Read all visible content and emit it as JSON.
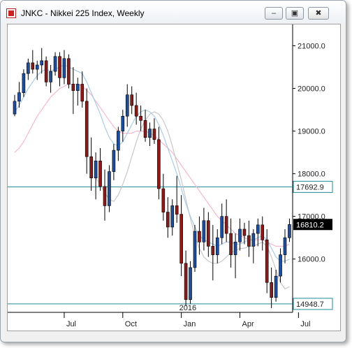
{
  "window": {
    "title": "JNKC - Nikkei 225 Index, Weekly",
    "buttons": [
      "–",
      "▣",
      "✖"
    ]
  },
  "colors": {
    "up_candle": "#1f4e9c",
    "down_candle": "#8b1a1a",
    "wick": "#000000",
    "ma_fast": "#a9cbe6",
    "ma_slow": "#f5b8d0",
    "ma_mid": "#c8c8c8",
    "hline": "#1e8c9c",
    "price_tag_bg": "#000000",
    "price_tag_fg": "#ffffff"
  },
  "chart_data": {
    "type": "candlestick",
    "title": "JNKC - Nikkei 225 Index, Weekly",
    "ylim": [
      14750,
      21500
    ],
    "y_ticks": [
      "21000.0",
      "20000.0",
      "19000.0",
      "18000.0",
      "17000.0",
      "16000.0"
    ],
    "y_tick_values": [
      21000,
      20000,
      19000,
      18000,
      17000,
      16000
    ],
    "x_ticks": [
      {
        "label": "Jul",
        "index": 11
      },
      {
        "label": "Oct",
        "index": 24
      },
      {
        "label": "Jan",
        "index": 37
      },
      {
        "label": "Apr",
        "index": 50
      },
      {
        "label": "Jul",
        "index": 63
      }
    ],
    "year_label": {
      "label": "2016",
      "index": 37
    },
    "horizontal_lines": [
      {
        "value": 17692.9,
        "label": "17692.9"
      },
      {
        "value": 14948.7,
        "label": "14948.7"
      }
    ],
    "last_price": {
      "value": 16810.2,
      "label": "16810.2"
    },
    "candles": [
      [
        19400,
        19850,
        19350,
        19700
      ],
      [
        19700,
        20150,
        19550,
        19900
      ],
      [
        19900,
        20450,
        19800,
        20350
      ],
      [
        20350,
        20700,
        20200,
        20600
      ],
      [
        20600,
        20900,
        20350,
        20450
      ],
      [
        20450,
        20650,
        20200,
        20550
      ],
      [
        20550,
        20950,
        20350,
        20650
      ],
      [
        20650,
        20750,
        20050,
        20150
      ],
      [
        20150,
        20550,
        19900,
        20400
      ],
      [
        20400,
        20850,
        20300,
        20750
      ],
      [
        20750,
        20850,
        20050,
        20250
      ],
      [
        20250,
        20900,
        20100,
        20700
      ],
      [
        20700,
        20800,
        20000,
        20100
      ],
      [
        20100,
        20500,
        19400,
        19950
      ],
      [
        19950,
        20250,
        19600,
        20100
      ],
      [
        20100,
        20400,
        19550,
        19700
      ],
      [
        19700,
        20000,
        18000,
        18400
      ],
      [
        18400,
        18850,
        17600,
        17900
      ],
      [
        17900,
        18500,
        17400,
        18300
      ],
      [
        18300,
        18600,
        17600,
        17700
      ],
      [
        17700,
        18100,
        16900,
        17250
      ],
      [
        17250,
        18200,
        17100,
        18050
      ],
      [
        18050,
        18700,
        17850,
        18550
      ],
      [
        18550,
        19100,
        18300,
        19000
      ],
      [
        19000,
        19500,
        18750,
        19350
      ],
      [
        19350,
        20100,
        19100,
        19850
      ],
      [
        19850,
        20050,
        19400,
        19600
      ],
      [
        19600,
        19900,
        19150,
        19350
      ],
      [
        19350,
        19600,
        19000,
        19250
      ],
      [
        19250,
        19500,
        18750,
        18850
      ],
      [
        18850,
        19200,
        18650,
        19050
      ],
      [
        19050,
        19300,
        18700,
        18800
      ],
      [
        18800,
        19100,
        17400,
        17650
      ],
      [
        17650,
        18000,
        16900,
        17100
      ],
      [
        17100,
        17450,
        16500,
        16750
      ],
      [
        16750,
        17400,
        16550,
        17250
      ],
      [
        17250,
        17950,
        16850,
        17050
      ],
      [
        17050,
        17500,
        15600,
        15900
      ],
      [
        15900,
        16200,
        14900,
        15050
      ],
      [
        15050,
        15950,
        14950,
        15800
      ],
      [
        15800,
        16800,
        15700,
        16650
      ],
      [
        16650,
        17000,
        16100,
        16400
      ],
      [
        16400,
        17200,
        16200,
        16900
      ],
      [
        16900,
        17100,
        16050,
        16300
      ],
      [
        16300,
        16800,
        15500,
        16100
      ],
      [
        16100,
        16700,
        15900,
        16500
      ],
      [
        16500,
        17300,
        16350,
        17000
      ],
      [
        17000,
        17400,
        16400,
        16600
      ],
      [
        16600,
        16950,
        15800,
        16100
      ],
      [
        16100,
        16600,
        15550,
        16400
      ],
      [
        16400,
        16950,
        16200,
        16700
      ],
      [
        16700,
        16850,
        16350,
        16550
      ],
      [
        16550,
        16900,
        16050,
        16300
      ],
      [
        16300,
        16700,
        15900,
        16600
      ],
      [
        16600,
        16950,
        16300,
        16800
      ],
      [
        16800,
        17000,
        16200,
        16450
      ],
      [
        16450,
        16700,
        15200,
        15450
      ],
      [
        15450,
        15800,
        14850,
        15100
      ],
      [
        15100,
        15750,
        15000,
        15600
      ],
      [
        15600,
        16250,
        15450,
        16100
      ],
      [
        16100,
        16700,
        15900,
        16500
      ],
      [
        16500,
        16950,
        16400,
        16810
      ]
    ],
    "ma_fast": [
      19450,
      19600,
      19800,
      20000,
      20150,
      20300,
      20400,
      20450,
      20400,
      20450,
      20500,
      20550,
      20500,
      20450,
      20400,
      20350,
      20150,
      19900,
      19650,
      19400,
      19100,
      18850,
      18700,
      18650,
      18750,
      18950,
      19150,
      19350,
      19450,
      19500,
      19450,
      19350,
      19150,
      18900,
      18600,
      18300,
      18000,
      17650,
      17300,
      17000,
      16750,
      16550,
      16450,
      16400,
      16350,
      16300,
      16350,
      16400,
      16400,
      16350,
      16350,
      16400,
      16450,
      16450,
      16500,
      16550,
      16450,
      16250,
      16050,
      15950,
      15950,
      16000
    ],
    "ma_slow": [
      18500,
      18600,
      18750,
      18950,
      19150,
      19350,
      19500,
      19650,
      19800,
      19900,
      20000,
      20050,
      20100,
      20100,
      20100,
      20050,
      19950,
      19850,
      19700,
      19550,
      19400,
      19250,
      19100,
      19000,
      18950,
      18950,
      18950,
      19000,
      19000,
      19000,
      18950,
      18900,
      18800,
      18700,
      18600,
      18500,
      18350,
      18200,
      18050,
      17900,
      17750,
      17600,
      17450,
      17300,
      17150,
      17000,
      16900,
      16800,
      16700,
      16600,
      16550,
      16500,
      16450,
      16450,
      16450,
      16450,
      16400,
      16350,
      16300,
      16300,
      16300,
      16350
    ],
    "ma_mid": [
      null,
      null,
      null,
      null,
      null,
      null,
      null,
      null,
      null,
      null,
      null,
      null,
      null,
      null,
      null,
      null,
      null,
      null,
      17900,
      17750,
      17550,
      17400,
      17350,
      17500,
      17750,
      18050,
      18400,
      18750,
      19050,
      19250,
      19400,
      19450,
      19400,
      19250,
      19000,
      18650,
      18250,
      17850,
      17400,
      16950,
      16550,
      16250,
      16050,
      15950,
      15900,
      15900,
      15950,
      16050,
      16150,
      16200,
      16250,
      16250,
      16300,
      16300,
      16350,
      16400,
      16300,
      16050,
      15750,
      15450,
      15300,
      15350
    ]
  }
}
